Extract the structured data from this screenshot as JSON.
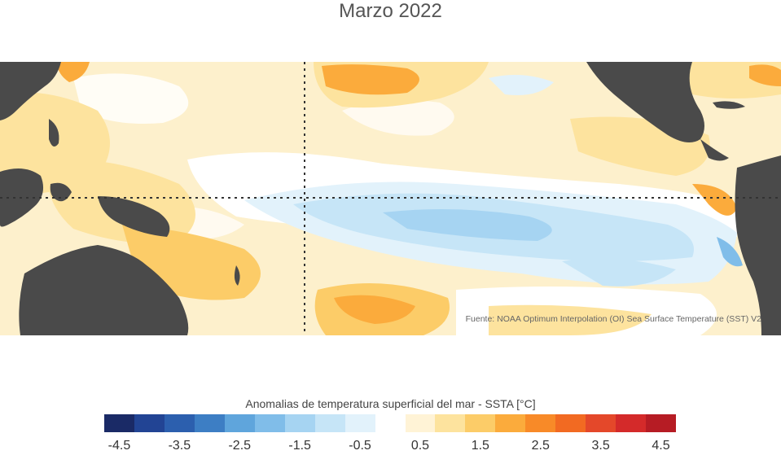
{
  "title": "Marzo 2022",
  "source": "Fuente: NOAA Optimum Interpolation (OI) Sea Surface Temperature (SST) V2",
  "legend": {
    "title": "Anomalias de temperatura superficial del mar - SSTA  [°C]",
    "colors": [
      "#1a2a66",
      "#224494",
      "#2c5fae",
      "#3d7ec4",
      "#5fa5dc",
      "#80bde9",
      "#a6d4f2",
      "#c6e5f7",
      "#e2f2fb",
      "#ffffff",
      "#fff3d6",
      "#fde39e",
      "#fccc68",
      "#fbab3c",
      "#f88a28",
      "#f26a22",
      "#e4482a",
      "#d42a2a",
      "#b61c24"
    ],
    "ticks": [
      "-4.5",
      "-3.5",
      "-2.5",
      "-1.5",
      "-0.5",
      "0.5",
      "1.5",
      "2.5",
      "3.5",
      "4.5"
    ]
  },
  "map": {
    "ocean_base_color": "#fdf0cc",
    "land_color": "#4a4a4a"
  }
}
